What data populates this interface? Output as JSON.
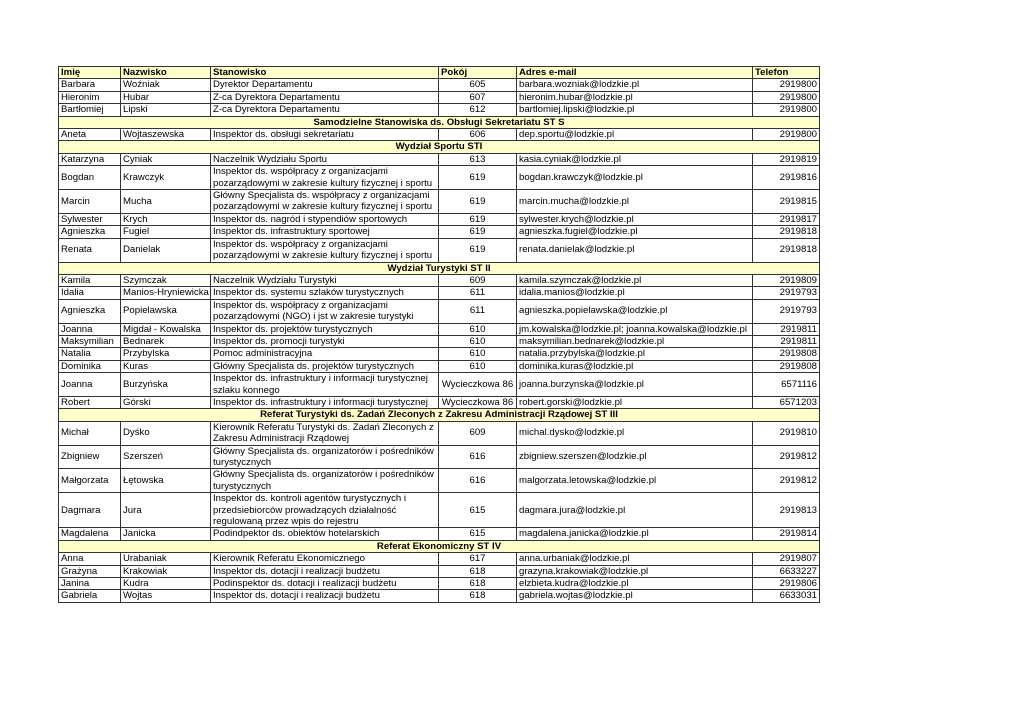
{
  "columns": [
    "Imię",
    "Nazwisko",
    "Stanowisko",
    "Pokój",
    "Adres e-mail",
    "Telefon"
  ],
  "rows": [
    {
      "first": "Barbara",
      "last": "Woźniak",
      "position": "Dyrektor Departamentu",
      "room": "605",
      "email": "barbara.wozniak@lodzkie.pl",
      "phone": "2919800"
    },
    {
      "first": "Hieronim",
      "last": "Hubar",
      "position": "Z-ca Dyrektora Departamentu",
      "room": "607",
      "email": "hieronim.hubar@lodzkie.pl",
      "phone": "2919800"
    },
    {
      "first": "Bartłomiej",
      "last": "Lipski",
      "position": "Z-ca Dyrektora Departamentu",
      "room": "612",
      "email": "bartlomiej.lipski@lodzkie.pl",
      "phone": "2919800"
    },
    {
      "section": "Samodzielne Stanowiska ds. Obsługi Sekretariatu ST S"
    },
    {
      "first": "Aneta",
      "last": "Wojtaszewska",
      "position": "Inspektor ds. obsługi sekretariatu",
      "room": "606",
      "email": "dep.sportu@lodzkie.pl",
      "phone": "2919800"
    },
    {
      "section": "Wydział Sportu STI"
    },
    {
      "first": "Katarzyna",
      "last": "Cyniak",
      "position": "Naczelnik Wydziału Sportu",
      "room": "613",
      "email": "kasia.cyniak@lodzkie.pl",
      "phone": "2919819"
    },
    {
      "first": "Bogdan",
      "last": "Krawczyk",
      "position": "Inspektor ds. współpracy z organizacjami pozarządowymi w zakresie kultury fizycznej i sportu",
      "room": "619",
      "email": "bogdan.krawczyk@lodzkie.pl",
      "phone": "2919816"
    },
    {
      "first": "Marcin",
      "last": "Mucha",
      "position": "Główny Specjalista ds. współpracy z organizacjami pozarządowymi w zakresie kultury fizycznej i sportu",
      "room": "619",
      "email": "marcin.mucha@lodzkie.pl",
      "phone": "2919815"
    },
    {
      "first": "Sylwester",
      "last": "Krych",
      "position": "Inspektor ds. nagród i stypendiów sportowych",
      "room": "619",
      "email": "sylwester.krych@lodzkie.pl",
      "phone": "2919817"
    },
    {
      "first": "Agnieszka",
      "last": "Fugiel",
      "position": "Inspektor ds. infrastruktury sportowej",
      "room": "619",
      "email": "agnieszka.fugiel@lodzkie.pl",
      "phone": "2919818"
    },
    {
      "first": "Renata",
      "last": "Danielak",
      "position": "Inspektor ds. współpracy z organizacjami pozarządowymi w zakresie kultury fizycznej i sportu",
      "room": "619",
      "email": "renata.danielak@lodzkie.pl",
      "phone": "2919818"
    },
    {
      "section": "Wydział Turystyki ST II"
    },
    {
      "first": "Kamila",
      "last": "Szymczak",
      "position": "Naczelnik  Wydziału Turystyki",
      "room": "609",
      "email": "kamila.szymczak@lodzkie.pl",
      "phone": "2919809"
    },
    {
      "first": "Idalia",
      "last": "Manios-Hryniewicka",
      "position": "Inspektor ds. systemu szlaków turystycznych",
      "room": "611",
      "email": "idalia.manios@lodzkie.pl",
      "phone": "2919793"
    },
    {
      "first": "Agnieszka",
      "last": "Popielawska",
      "position": "Inspektor ds. współpracy z organizacjami pozarządowymi (NGO) i jst w zakresie turystyki",
      "room": "611",
      "email": "agnieszka.popielawska@lodzkie.pl",
      "phone": "2919793"
    },
    {
      "first": "Joanna",
      "last": "Migdał - Kowalska",
      "position": "Inspektor ds. projektów turystycznych",
      "room": "610",
      "email": "jm.kowalska@lodzkie.pl; joanna.kowalska@lodzkie.pl",
      "phone": "2919811"
    },
    {
      "first": "Maksymilian",
      "last": "Bednarek",
      "position": "Inspektor ds. promocji turystyki",
      "room": "610",
      "email": "maksymilian.bednarek@lodzkie.pl",
      "phone": "2919811"
    },
    {
      "first": "Natalia",
      "last": "Przybylska",
      "position": "Pomoc administracyjna",
      "room": "610",
      "email": "natalia.przybylska@lodzkie.pl",
      "phone": "2919808"
    },
    {
      "first": "Dominika",
      "last": "Kuras",
      "position": "Główny Specjalista ds. projektów turystycznych",
      "room": "610",
      "email": "dominika.kuras@lodzkie.pl",
      "phone": "2919808"
    },
    {
      "first": "Joanna",
      "last": "Burzyńska",
      "position": "Inspektor ds. infrastruktury i informacji turystycznej szlaku konnego",
      "room": "Wycieczkowa 86",
      "email": "joanna.burzynska@lodzkie.pl",
      "phone": "6571116"
    },
    {
      "first": "Robert",
      "last": "Górski",
      "position": "Inspektor ds. infrastruktury i informacji turystycznej",
      "room": "Wycieczkowa 86",
      "email": "robert.gorski@lodzkie.pl",
      "phone": "6571203"
    },
    {
      "section": "Referat Turystyki ds. Zadań Zleconych z Zakresu Administracji Rządowej ST III"
    },
    {
      "first": "Michał",
      "last": "Dyśko",
      "position": "Kierownik Referatu Turystyki ds. Zadań Zleconych z Zakresu  Administracji Rządowej",
      "room": "609",
      "email": "michal.dysko@lodzkie.pl",
      "phone": "2919810"
    },
    {
      "first": "Zbigniew",
      "last": "Szerszeń",
      "position": "Główny Specjalista ds. organizatorów i pośredników turystycznych",
      "room": "616",
      "email": "zbigniew.szerszen@lodzkie.pl",
      "phone": "2919812"
    },
    {
      "first": "Małgorzata",
      "last": "Łętowska",
      "position": "Główny Specjalista ds. organizatorów i pośredników turystycznych",
      "room": "616",
      "email": "malgorzata.letowska@lodzkie.pl",
      "phone": "2919812"
    },
    {
      "first": "Dagmara",
      "last": "Jura",
      "position": "Inspektor ds. kontroli agentów turystycznych i przedsiebiorców prowadzących działalność regulowaną przez wpis do rejestru",
      "room": "615",
      "email": "dagmara.jura@lodzkie.pl",
      "phone": "2919813"
    },
    {
      "first": "Magdalena",
      "last": "Janicka",
      "position": "Podindpektor ds. obiektów hotelarskich",
      "room": "615",
      "email": "magdalena.janicka@lodzkie.pl",
      "phone": "2919814"
    },
    {
      "section": "Referat Ekonomiczny ST IV"
    },
    {
      "first": "Anna",
      "last": "Urabaniak",
      "position": "Kierownik Referatu Ekonomicznego",
      "room": "617",
      "email": "anna.urbaniak@lodzkie.pl",
      "phone": "2919807"
    },
    {
      "first": "Grażyna",
      "last": "Krakowiak",
      "position": "Inspektor ds. dotacji i realizacji budżetu",
      "room": "618",
      "email": "grazyna.krakowiak@lodzkie.pl",
      "phone": "6633227"
    },
    {
      "first": "Janina",
      "last": "Kudra",
      "position": "Podinspektor ds. dotacji i realizacji budżetu",
      "room": "618",
      "email": "elzbieta.kudra@lodzkie.pl",
      "phone": "2919806"
    },
    {
      "first": "Gabriela",
      "last": "Wojtas",
      "position": "Inspektor ds. dotacji i realizacji budżetu",
      "room": "618",
      "email": "gabriela.wojtas@lodzkie.pl",
      "phone": "6633031"
    }
  ]
}
